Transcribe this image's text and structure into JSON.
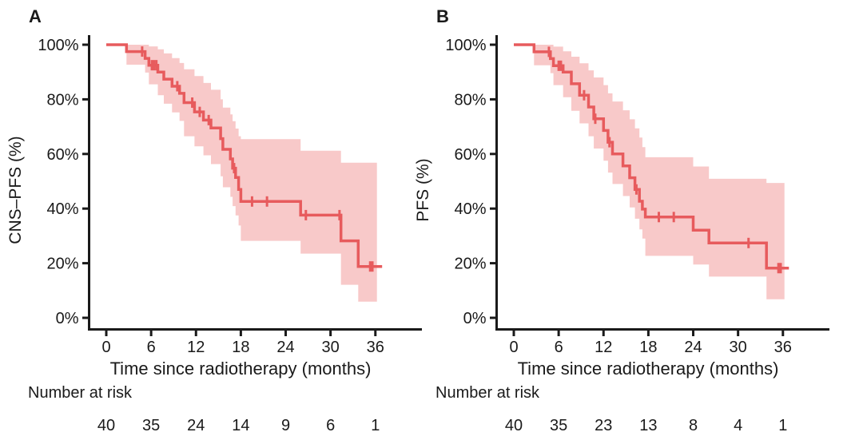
{
  "figure": {
    "background": "#ffffff",
    "curve_color": "#e75b5d",
    "band_color": "#f8c9c9",
    "axis_color": "#1a1a1a",
    "text_color": "#1a1a1a"
  },
  "chart_data": [
    {
      "type": "line",
      "subtype": "kaplan-meier-step",
      "panel_label": "A",
      "ylabel": "CNS–PFS (%)",
      "xlabel": "Time since radiotherapy (months)",
      "xlim": [
        0,
        42
      ],
      "ylim_pct": [
        0,
        100
      ],
      "grid": false,
      "legend": "none",
      "xticks": [
        0,
        6,
        12,
        18,
        24,
        30,
        36
      ],
      "xtick_labels": [
        "0",
        "6",
        "12",
        "18",
        "24",
        "30",
        "36"
      ],
      "yticks_pct": [
        0,
        20,
        40,
        60,
        80,
        100
      ],
      "ytick_labels": [
        "0%",
        "20%",
        "40%",
        "60%",
        "80%",
        "100%"
      ],
      "risk_label": "Number at risk",
      "risk_counts": [
        "40",
        "35",
        "24",
        "14",
        "9",
        "6",
        "1"
      ],
      "km_steps": [
        [
          0,
          100
        ],
        [
          2.7,
          97.5
        ],
        [
          5.2,
          95.0
        ],
        [
          5.7,
          92.5
        ],
        [
          6.9,
          90.0
        ],
        [
          7.7,
          87.4
        ],
        [
          8.8,
          84.8
        ],
        [
          9.8,
          82.2
        ],
        [
          10.4,
          78.8
        ],
        [
          11.8,
          75.4
        ],
        [
          13.0,
          72.4
        ],
        [
          14.0,
          69.5
        ],
        [
          15.3,
          65.6
        ],
        [
          15.6,
          61.7
        ],
        [
          16.6,
          58.2
        ],
        [
          16.9,
          54.8
        ],
        [
          17.3,
          51.4
        ],
        [
          17.7,
          47.0
        ],
        [
          18.0,
          42.6
        ],
        [
          26.0,
          37.6
        ],
        [
          31.4,
          28.2
        ],
        [
          33.7,
          18.8
        ]
      ],
      "end_time": 36.9,
      "censor_marks": [
        [
          4.8,
          97.5
        ],
        [
          6.1,
          92.5
        ],
        [
          6.4,
          92.5
        ],
        [
          6.7,
          92.5
        ],
        [
          9.5,
          84.8
        ],
        [
          11.5,
          78.8
        ],
        [
          12.5,
          75.4
        ],
        [
          13.7,
          72.4
        ],
        [
          17.1,
          54.8
        ],
        [
          19.5,
          42.6
        ],
        [
          21.5,
          42.6
        ],
        [
          26.7,
          37.6
        ],
        [
          31.2,
          37.6
        ],
        [
          35.3,
          18.8
        ],
        [
          35.6,
          18.8
        ]
      ],
      "ci_band": [
        [
          2.7,
          92.7,
          100
        ],
        [
          5.2,
          89.8,
          100
        ],
        [
          5.7,
          85.5,
          99.4
        ],
        [
          6.9,
          81.5,
          98.3
        ],
        [
          7.7,
          78.4,
          96.8
        ],
        [
          8.8,
          75.2,
          95.1
        ],
        [
          9.8,
          72.1,
          93.3
        ],
        [
          10.4,
          66.5,
          91.0
        ],
        [
          11.8,
          62.8,
          88.5
        ],
        [
          13.0,
          59.5,
          86.0
        ],
        [
          14.0,
          56.3,
          83.5
        ],
        [
          15.3,
          51.8,
          80.0
        ],
        [
          15.6,
          47.8,
          77.0
        ],
        [
          16.6,
          44.3,
          74.5
        ],
        [
          16.9,
          40.9,
          72.0
        ],
        [
          17.3,
          37.5,
          69.3
        ],
        [
          17.7,
          33.8,
          66.5
        ],
        [
          18.0,
          28.2,
          65.4
        ],
        [
          26.0,
          23.5,
          61.2
        ],
        [
          31.4,
          12.1,
          56.8
        ],
        [
          33.7,
          5.9,
          56.8
        ],
        [
          36.2,
          5.9,
          56.8
        ]
      ]
    },
    {
      "type": "line",
      "subtype": "kaplan-meier-step",
      "panel_label": "B",
      "ylabel": "PFS (%)",
      "xlabel": "Time since radiotherapy (months)",
      "xlim": [
        0,
        42
      ],
      "ylim_pct": [
        0,
        100
      ],
      "grid": false,
      "legend": "none",
      "xticks": [
        0,
        6,
        12,
        18,
        24,
        30,
        36
      ],
      "xtick_labels": [
        "0",
        "6",
        "12",
        "18",
        "24",
        "30",
        "36"
      ],
      "yticks_pct": [
        0,
        20,
        40,
        60,
        80,
        100
      ],
      "ytick_labels": [
        "0%",
        "20%",
        "40%",
        "60%",
        "80%",
        "100%"
      ],
      "risk_label": "Number at risk",
      "risk_counts": [
        "40",
        "35",
        "23",
        "13",
        "8",
        "4",
        "1"
      ],
      "km_steps": [
        [
          0,
          100
        ],
        [
          2.7,
          97.4
        ],
        [
          4.9,
          94.9
        ],
        [
          5.3,
          92.3
        ],
        [
          6.6,
          90.0
        ],
        [
          7.7,
          85.7
        ],
        [
          8.8,
          81.5
        ],
        [
          10.0,
          77.2
        ],
        [
          10.7,
          72.9
        ],
        [
          12.0,
          68.6
        ],
        [
          12.6,
          64.3
        ],
        [
          13.2,
          60.0
        ],
        [
          14.6,
          55.6
        ],
        [
          15.5,
          51.3
        ],
        [
          16.2,
          47.0
        ],
        [
          16.8,
          42.7
        ],
        [
          17.2,
          39.8
        ],
        [
          17.6,
          36.9
        ],
        [
          24.0,
          32.1
        ],
        [
          26.1,
          27.4
        ],
        [
          33.8,
          18.2
        ]
      ],
      "end_time": 36.8,
      "censor_marks": [
        [
          4.7,
          97.4
        ],
        [
          6.0,
          92.3
        ],
        [
          6.3,
          92.3
        ],
        [
          9.4,
          81.5
        ],
        [
          10.9,
          72.9
        ],
        [
          12.8,
          64.3
        ],
        [
          16.4,
          47.0
        ],
        [
          19.4,
          36.9
        ],
        [
          21.4,
          36.9
        ],
        [
          31.4,
          27.4
        ],
        [
          35.4,
          18.2
        ],
        [
          35.7,
          18.2
        ]
      ],
      "ci_band": [
        [
          2.7,
          92.5,
          100
        ],
        [
          4.9,
          89.6,
          100
        ],
        [
          5.3,
          85.2,
          99.3
        ],
        [
          6.6,
          80.8,
          97.6
        ],
        [
          7.7,
          75.8,
          95.6
        ],
        [
          8.8,
          71.2,
          93.2
        ],
        [
          10.0,
          66.5,
          90.6
        ],
        [
          10.7,
          62.0,
          88.0
        ],
        [
          12.0,
          57.5,
          85.2
        ],
        [
          12.6,
          53.2,
          82.2
        ],
        [
          13.2,
          49.0,
          79.2
        ],
        [
          14.6,
          44.6,
          76.0
        ],
        [
          15.5,
          40.4,
          72.7
        ],
        [
          16.2,
          36.3,
          69.4
        ],
        [
          16.8,
          32.4,
          66.0
        ],
        [
          17.2,
          29.0,
          62.5
        ],
        [
          17.6,
          22.7,
          58.8
        ],
        [
          24.0,
          19.5,
          55.4
        ],
        [
          26.1,
          15.1,
          50.9
        ],
        [
          33.8,
          6.8,
          49.4
        ],
        [
          36.2,
          6.8,
          49.4
        ]
      ]
    }
  ]
}
